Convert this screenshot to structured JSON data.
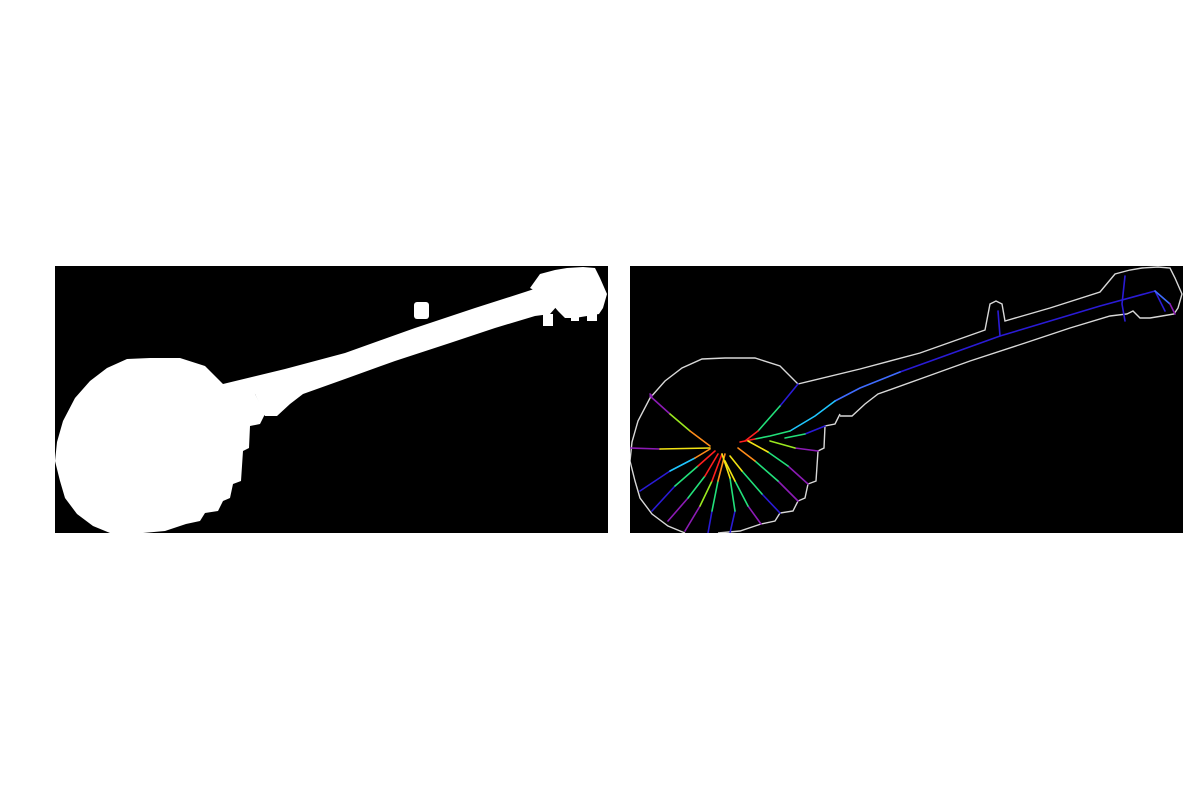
{
  "figure": {
    "panels": [
      {
        "kind": "binary-silhouette",
        "subject": "banjo"
      },
      {
        "kind": "skeleton-overlay",
        "subject": "banjo"
      }
    ]
  },
  "colors": {
    "background": "#ffffff",
    "panel_background": "#000000",
    "silhouette": "#ffffff",
    "outline": "#d8d8d8",
    "skeleton_palette": [
      "#2a1bd6",
      "#3f6cff",
      "#20c6ff",
      "#22e07a",
      "#9ae81f",
      "#f2e314",
      "#ff8c1a",
      "#ff1e1e",
      "#8c1bb5"
    ]
  }
}
